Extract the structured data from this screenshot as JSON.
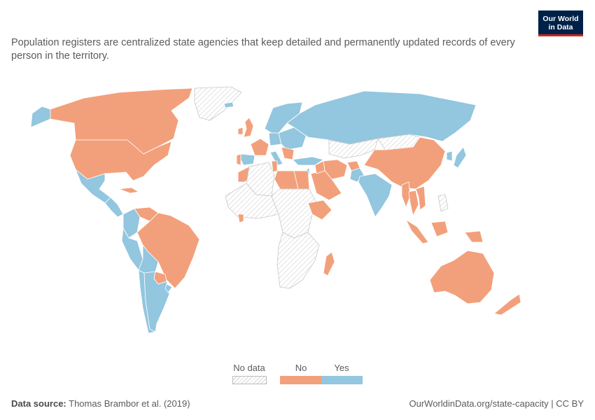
{
  "subtitle": "Population registers are centralized state agencies that keep detailed and permanently updated records of every person in the territory.",
  "logo": {
    "line1": "Our World",
    "line2": "in Data"
  },
  "legend": {
    "items": [
      {
        "label": "No data",
        "color": "#ffffff"
      },
      {
        "label": "No",
        "color": "#f2a07b"
      },
      {
        "label": "Yes",
        "color": "#93c6df"
      }
    ]
  },
  "colors": {
    "no": "#f2a07b",
    "yes": "#93c6df",
    "border": "#ffffff"
  },
  "map": {
    "regions": [
      {
        "name": "Alaska",
        "value": "Yes"
      },
      {
        "name": "Canada",
        "value": "No"
      },
      {
        "name": "United States",
        "value": "No"
      },
      {
        "name": "Greenland",
        "value": "No data"
      },
      {
        "name": "Mexico",
        "value": "Yes"
      },
      {
        "name": "Cuba",
        "value": "No"
      },
      {
        "name": "Central America",
        "value": "Yes"
      },
      {
        "name": "Colombia",
        "value": "Yes"
      },
      {
        "name": "Venezuela",
        "value": "No"
      },
      {
        "name": "Peru",
        "value": "Yes"
      },
      {
        "name": "Brazil",
        "value": "No"
      },
      {
        "name": "Bolivia",
        "value": "Yes"
      },
      {
        "name": "Paraguay",
        "value": "No"
      },
      {
        "name": "Chile",
        "value": "Yes"
      },
      {
        "name": "Argentina",
        "value": "Yes"
      },
      {
        "name": "Uruguay",
        "value": "Yes"
      },
      {
        "name": "Iceland",
        "value": "Yes"
      },
      {
        "name": "United Kingdom",
        "value": "No"
      },
      {
        "name": "Ireland",
        "value": "No"
      },
      {
        "name": "Scandinavia",
        "value": "Yes"
      },
      {
        "name": "France",
        "value": "No"
      },
      {
        "name": "Spain",
        "value": "Yes"
      },
      {
        "name": "Portugal",
        "value": "No"
      },
      {
        "name": "Germany",
        "value": "Yes"
      },
      {
        "name": "Italy",
        "value": "Yes"
      },
      {
        "name": "Eastern Europe",
        "value": "Yes"
      },
      {
        "name": "Balkans",
        "value": "No"
      },
      {
        "name": "Russia",
        "value": "Yes"
      },
      {
        "name": "Turkey",
        "value": "Yes"
      },
      {
        "name": "Central Asia",
        "value": "No data"
      },
      {
        "name": "Mongolia",
        "value": "No data"
      },
      {
        "name": "Iran",
        "value": "No"
      },
      {
        "name": "Afghanistan",
        "value": "No"
      },
      {
        "name": "Pakistan",
        "value": "Yes"
      },
      {
        "name": "Saudi Arabia",
        "value": "No"
      },
      {
        "name": "Iraq",
        "value": "No"
      },
      {
        "name": "Israel",
        "value": "Yes"
      },
      {
        "name": "India",
        "value": "Yes"
      },
      {
        "name": "China",
        "value": "No"
      },
      {
        "name": "Korea",
        "value": "Yes"
      },
      {
        "name": "Japan",
        "value": "Yes"
      },
      {
        "name": "Myanmar",
        "value": "No"
      },
      {
        "name": "Thailand",
        "value": "No"
      },
      {
        "name": "Vietnam",
        "value": "No"
      },
      {
        "name": "Philippines",
        "value": "No data"
      },
      {
        "name": "Sumatra",
        "value": "No"
      },
      {
        "name": "Borneo",
        "value": "No"
      },
      {
        "name": "Papua New Guinea",
        "value": "No"
      },
      {
        "name": "Australia",
        "value": "No"
      },
      {
        "name": "New Zealand",
        "value": "No"
      },
      {
        "name": "Morocco",
        "value": "No"
      },
      {
        "name": "Algeria",
        "value": "No data"
      },
      {
        "name": "Tunisia",
        "value": "No"
      },
      {
        "name": "Libya",
        "value": "No"
      },
      {
        "name": "Egypt",
        "value": "No"
      },
      {
        "name": "West Africa",
        "value": "No data"
      },
      {
        "name": "Ghana",
        "value": "No"
      },
      {
        "name": "Central Africa",
        "value": "No data"
      },
      {
        "name": "Ethiopia",
        "value": "No"
      },
      {
        "name": "Southern Africa",
        "value": "No data"
      },
      {
        "name": "Madagascar",
        "value": "No"
      }
    ]
  },
  "footer": {
    "source_label": "Data source:",
    "source_text": " Thomas Brambor et al. (2019)",
    "url": "OurWorldinData.org/state-capacity | CC BY"
  }
}
